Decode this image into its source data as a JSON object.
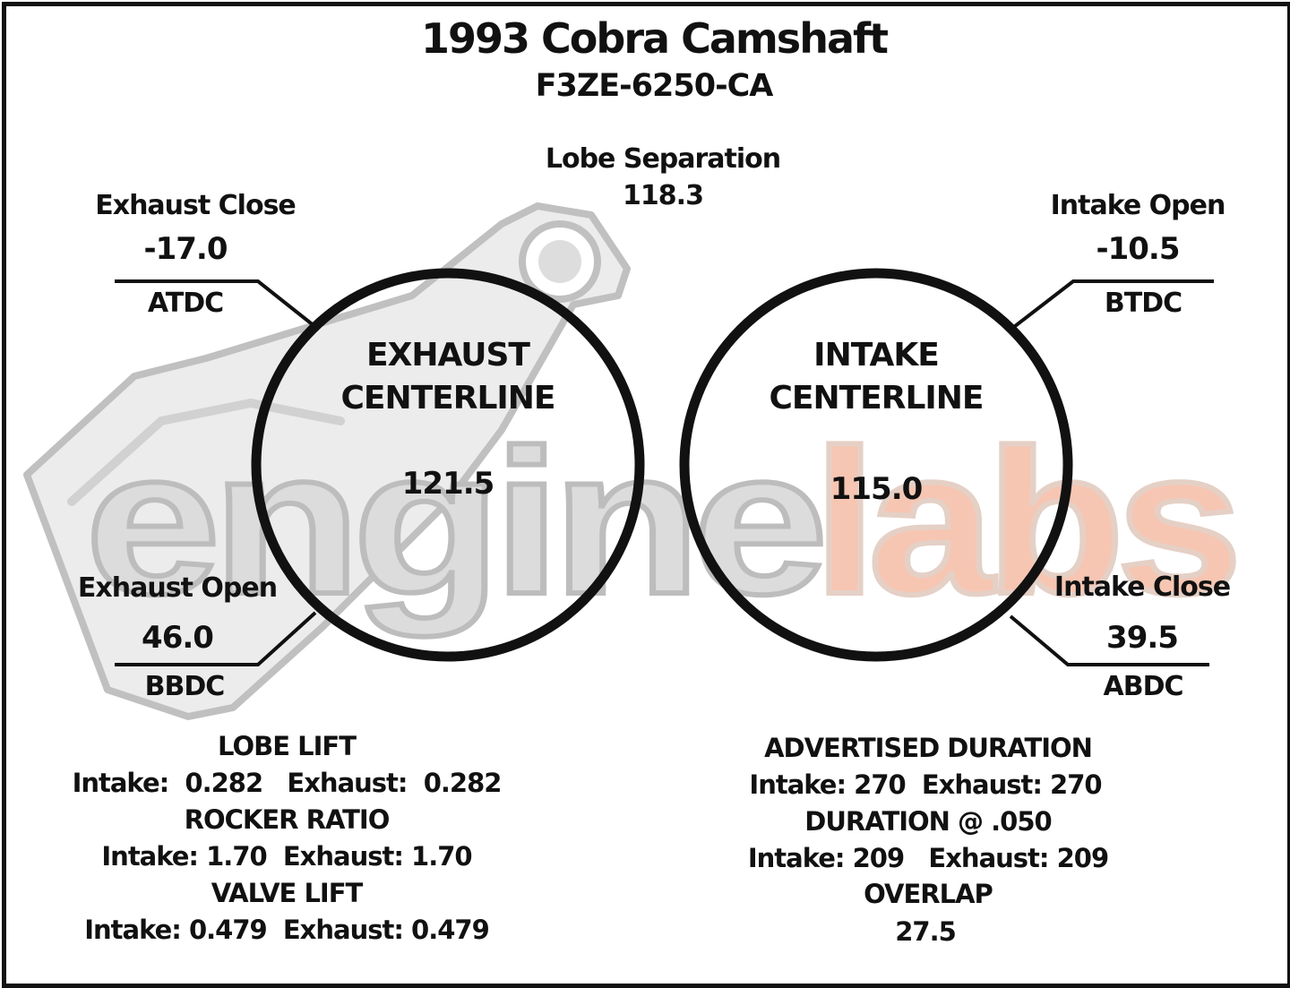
{
  "header": {
    "title": "1993 Cobra Camshaft",
    "part_number": "F3ZE-6250-CA"
  },
  "lobe_separation": {
    "label": "Lobe Separation",
    "value": "118.3"
  },
  "exhaust_close": {
    "label": "Exhaust Close",
    "value": "-17.0",
    "unit": "ATDC"
  },
  "intake_open": {
    "label": "Intake Open",
    "value": "-10.5",
    "unit": "BTDC"
  },
  "exhaust_open": {
    "label": "Exhaust Open",
    "value": "46.0",
    "unit": "BBDC"
  },
  "intake_close": {
    "label": "Intake Close",
    "value": "39.5",
    "unit": "ABDC"
  },
  "exhaust_centerline": {
    "line1": "EXHAUST",
    "line2": "CENTERLINE",
    "value": "121.5"
  },
  "intake_centerline": {
    "line1": "INTAKE",
    "line2": "CENTERLINE",
    "value": "115.0"
  },
  "left_specs": {
    "lobe_lift_heading": "LOBE LIFT",
    "lobe_lift_values": "Intake:  0.282   Exhaust:  0.282",
    "rocker_ratio_heading": "ROCKER RATIO",
    "rocker_ratio_values": "Intake: 1.70  Exhaust: 1.70",
    "valve_lift_heading": "VALVE LIFT",
    "valve_lift_values": "Intake: 0.479  Exhaust: 0.479"
  },
  "right_specs": {
    "advertised_duration_heading": "ADVERTISED DURATION",
    "advertised_duration_values": "Intake: 270  Exhaust: 270",
    "duration_050_heading": "DURATION @ .050",
    "duration_050_values": "Intake: 209   Exhaust: 209",
    "overlap_heading": "OVERLAP",
    "overlap_value": "27.5"
  },
  "watermark": {
    "text_part1": "engine",
    "text_part2": "labs"
  },
  "colors": {
    "ink": "#111111",
    "watermark_gray": "#dcdcdc",
    "watermark_gray_dark": "#bdbdbd",
    "watermark_accent": "#f6c6b3"
  }
}
